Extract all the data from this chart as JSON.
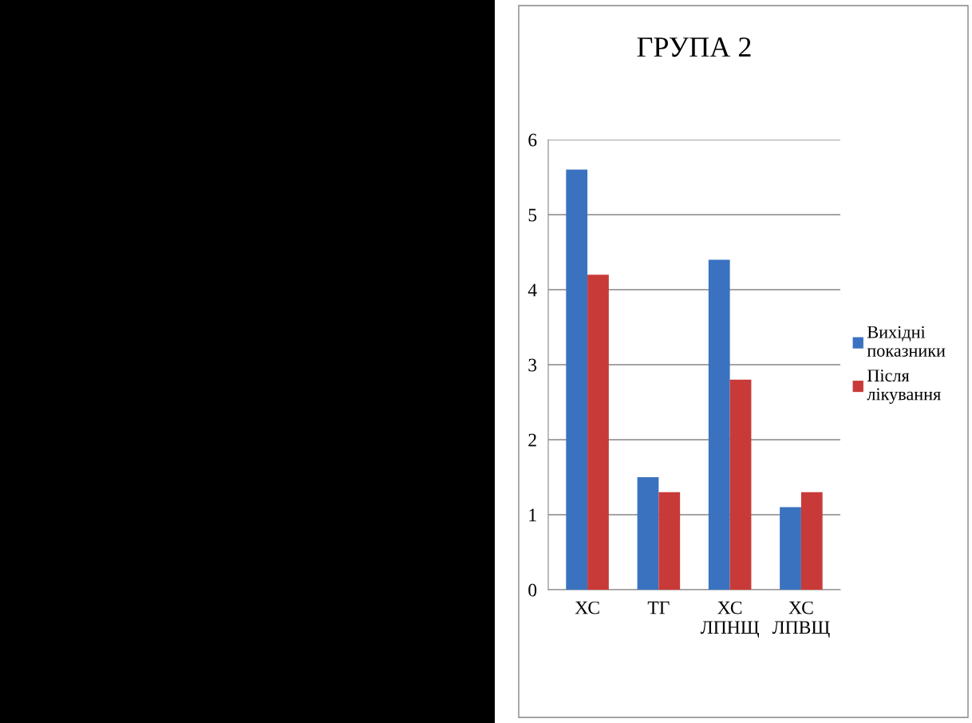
{
  "chart_data": {
    "type": "bar",
    "title": "ГРУПА 2",
    "categories": [
      "ХС",
      "ТГ",
      "ХС\nЛПНЩ",
      "ХС\nЛПВЩ"
    ],
    "series": [
      {
        "name": "Вихідні\nпоказники",
        "color": "#3a72c0",
        "values": [
          5.6,
          1.5,
          4.4,
          1.1
        ]
      },
      {
        "name": "Після\nлікування",
        "color": "#c83a38",
        "values": [
          4.2,
          1.3,
          2.8,
          1.3
        ]
      }
    ],
    "ylim": [
      0,
      6
    ],
    "yticks": [
      0,
      1,
      2,
      3,
      4,
      5,
      6
    ],
    "grid": "y",
    "legend": "right"
  }
}
